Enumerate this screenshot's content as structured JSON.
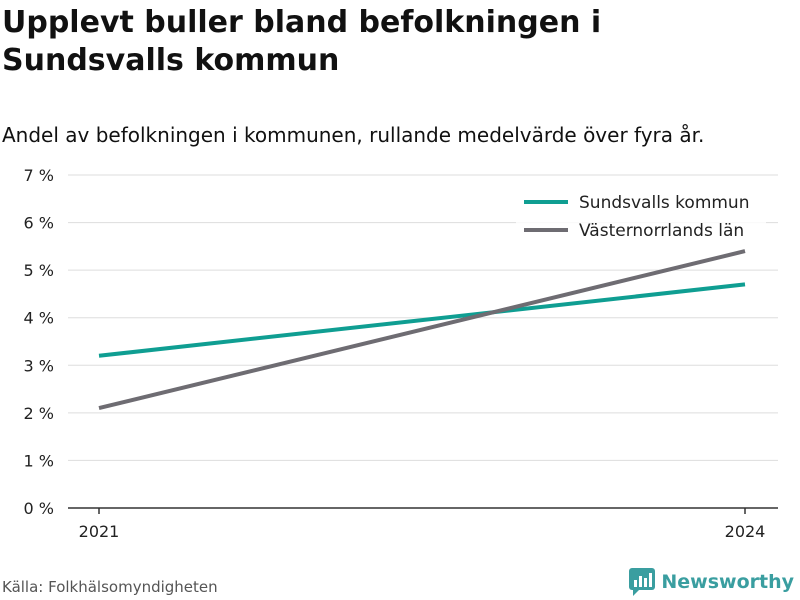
{
  "title": "Upplevt buller bland befolkningen i Sundsvalls kommun",
  "subtitle": "Andel av befolkningen i kommunen, rullande medelvärde över fyra år.",
  "source": "Källa: Folkhälsomyndigheten",
  "brand": "Newsworthy",
  "colors": {
    "sundsvall": "#0f9e92",
    "vasternorrland": "#6e6c72",
    "grid": "#dddddd",
    "axis": "#333333",
    "brand": "#3a9ea0"
  },
  "chart_data": {
    "type": "line",
    "x": [
      2021,
      2024
    ],
    "x_tick_labels": [
      "2021",
      "2024"
    ],
    "ylim": [
      0,
      7
    ],
    "y_ticks": [
      0,
      1,
      2,
      3,
      4,
      5,
      6,
      7
    ],
    "y_tick_labels": [
      "0 %",
      "1 %",
      "2 %",
      "3 %",
      "4 %",
      "5 %",
      "6 %",
      "7 %"
    ],
    "grid": true,
    "legend_position": "top-right",
    "series": [
      {
        "name": "Sundsvalls kommun",
        "values": [
          3.2,
          4.7
        ],
        "color": "#0f9e92"
      },
      {
        "name": "Västernorrlands län",
        "values": [
          2.1,
          5.4
        ],
        "color": "#6e6c72"
      }
    ]
  }
}
